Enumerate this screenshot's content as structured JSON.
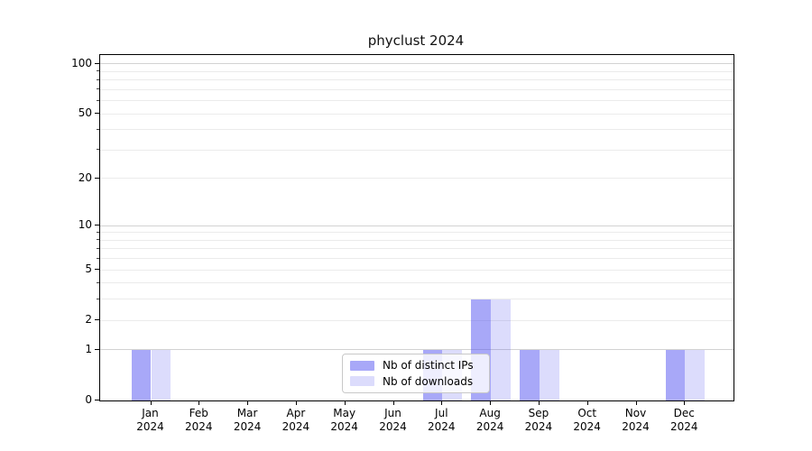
{
  "chart_data": {
    "type": "bar",
    "title": "phyclust 2024",
    "x_months": [
      "Jan",
      "Feb",
      "Mar",
      "Apr",
      "May",
      "Jun",
      "Jul",
      "Aug",
      "Sep",
      "Oct",
      "Nov",
      "Dec"
    ],
    "x_year": "2024",
    "series": [
      {
        "name": "Nb of distinct IPs",
        "values": [
          1,
          0,
          0,
          0,
          0,
          0,
          1,
          3,
          1,
          0,
          0,
          1
        ],
        "color": "rgba(81,81,241,0.5)"
      },
      {
        "name": "Nb of downloads",
        "values": [
          1,
          0,
          0,
          0,
          0,
          0,
          1,
          3,
          1,
          0,
          0,
          1
        ],
        "color": "rgba(81,81,241,0.2)"
      }
    ],
    "yscale": "log1p",
    "ylim": [
      0,
      113
    ],
    "ylabel": "",
    "xlabel": "",
    "y_labeled_ticks": [
      0,
      1,
      2,
      5,
      10,
      20,
      50,
      100
    ],
    "y_major_gridlines": [
      1,
      10,
      100
    ],
    "y_minor_gridlines": [
      2,
      3,
      4,
      5,
      6,
      7,
      8,
      9,
      20,
      30,
      40,
      50,
      60,
      70,
      80,
      90
    ],
    "grid": true,
    "legend_position": "lower center"
  },
  "colors": {
    "bar_dark": "rgba(81,81,241,0.5)",
    "bar_light": "rgba(81,81,241,0.2)",
    "grid_major": "#d2d2d2",
    "grid_minor": "#ebebeb",
    "axis": "#000000",
    "legend_border": "#c8c8c8"
  }
}
